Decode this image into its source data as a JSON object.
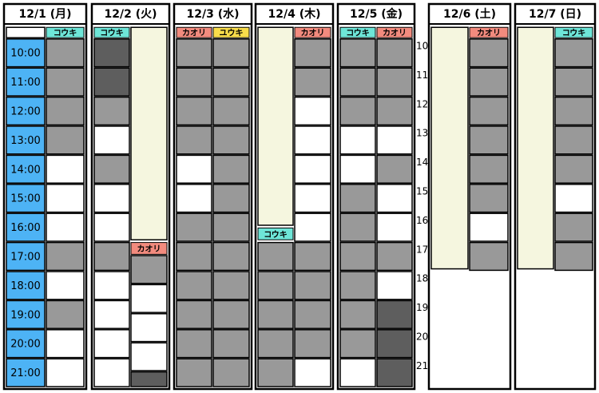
{
  "days": [
    {
      "header": "12/1 (月)",
      "columns": [
        {
          "blocks": [
            [
              9.6,
              10,
              "#ffffff"
            ],
            [
              10,
              11,
              "#4db3f5",
              "10:00"
            ],
            [
              11,
              12,
              "#4db3f5",
              "11:00"
            ],
            [
              12,
              13,
              "#4db3f5",
              "12:00"
            ],
            [
              13,
              14,
              "#4db3f5",
              "13:00"
            ],
            [
              14,
              15,
              "#4db3f5",
              "14:00"
            ],
            [
              15,
              16,
              "#4db3f5",
              "15:00"
            ],
            [
              16,
              17,
              "#4db3f5",
              "16:00"
            ],
            [
              17,
              18,
              "#4db3f5",
              "17:00"
            ],
            [
              18,
              19,
              "#4db3f5",
              "18:00"
            ],
            [
              19,
              20,
              "#4db3f5",
              "19:00"
            ],
            [
              20,
              21,
              "#4db3f5",
              "20:00"
            ],
            [
              21,
              22,
              "#4db3f5",
              "21:00"
            ]
          ]
        },
        {
          "blocks": [
            [
              9.6,
              10,
              "#6ee6d8",
              "コウキ"
            ],
            [
              10,
              11,
              "#999999"
            ],
            [
              11,
              12,
              "#999999"
            ],
            [
              12,
              13,
              "#999999"
            ],
            [
              13,
              14,
              "#999999"
            ],
            [
              14,
              15,
              "#ffffff"
            ],
            [
              15,
              16,
              "#ffffff"
            ],
            [
              16,
              17,
              "#ffffff"
            ],
            [
              17,
              18,
              "#999999"
            ],
            [
              18,
              19,
              "#ffffff"
            ],
            [
              19,
              20,
              "#999999"
            ],
            [
              20,
              21,
              "#ffffff"
            ],
            [
              21,
              22,
              "#ffffff"
            ]
          ]
        }
      ]
    },
    {
      "header": "12/2 (火)",
      "columns": [
        {
          "blocks": [
            [
              9.6,
              10,
              "#6ee6d8",
              "コウキ"
            ],
            [
              10,
              11,
              "#5e5e5e"
            ],
            [
              11,
              12,
              "#5e5e5e"
            ],
            [
              12,
              13,
              "#999999"
            ],
            [
              13,
              14,
              "#ffffff"
            ],
            [
              14,
              15,
              "#999999"
            ],
            [
              15,
              16,
              "#ffffff"
            ],
            [
              16,
              17,
              "#ffffff"
            ],
            [
              17,
              18,
              "#999999"
            ],
            [
              18,
              19,
              "#ffffff"
            ],
            [
              19,
              20,
              "#ffffff"
            ],
            [
              20,
              21,
              "#ffffff"
            ],
            [
              21,
              22,
              "#ffffff"
            ]
          ]
        },
        {
          "blocks": [
            [
              9.6,
              16.95,
              "#f5f6df"
            ],
            [
              17,
              17.45,
              "#f28b7e",
              "カオリ"
            ],
            [
              17.45,
              18.45,
              "#999999"
            ],
            [
              18.45,
              19.45,
              "#ffffff"
            ],
            [
              19.45,
              20.45,
              "#ffffff"
            ],
            [
              20.45,
              21.45,
              "#ffffff"
            ],
            [
              21.45,
              22,
              "#5e5e5e"
            ]
          ]
        }
      ]
    },
    {
      "header": "12/3 (水)",
      "columns": [
        {
          "blocks": [
            [
              9.6,
              10,
              "#f28b7e",
              "カオリ"
            ],
            [
              10,
              11,
              "#999999"
            ],
            [
              11,
              12,
              "#999999"
            ],
            [
              12,
              13,
              "#999999"
            ],
            [
              13,
              14,
              "#999999"
            ],
            [
              14,
              15,
              "#ffffff"
            ],
            [
              15,
              16,
              "#ffffff"
            ],
            [
              16,
              17,
              "#999999"
            ],
            [
              17,
              18,
              "#999999"
            ],
            [
              18,
              19,
              "#999999"
            ],
            [
              19,
              20,
              "#999999"
            ],
            [
              20,
              21,
              "#999999"
            ],
            [
              21,
              22,
              "#999999"
            ]
          ]
        },
        {
          "blocks": [
            [
              9.6,
              10,
              "#f9dd4a",
              "ユウキ"
            ],
            [
              10,
              11,
              "#999999"
            ],
            [
              11,
              12,
              "#999999"
            ],
            [
              12,
              13,
              "#999999"
            ],
            [
              13,
              14,
              "#999999"
            ],
            [
              14,
              15,
              "#999999"
            ],
            [
              15,
              16,
              "#999999"
            ],
            [
              16,
              17,
              "#999999"
            ],
            [
              17,
              18,
              "#999999"
            ],
            [
              18,
              19,
              "#999999"
            ],
            [
              19,
              20,
              "#999999"
            ],
            [
              20,
              21,
              "#999999"
            ],
            [
              21,
              22,
              "#999999"
            ]
          ]
        }
      ]
    },
    {
      "header": "12/4 (木)",
      "columns": [
        {
          "blocks": [
            [
              9.6,
              16.45,
              "#f5f6df"
            ],
            [
              16.5,
              16.95,
              "#6ee6d8",
              "コウキ"
            ],
            [
              17,
              18,
              "#999999"
            ],
            [
              18,
              19,
              "#999999"
            ],
            [
              19,
              20,
              "#999999"
            ],
            [
              20,
              21,
              "#999999"
            ],
            [
              21,
              22,
              "#999999"
            ]
          ]
        },
        {
          "blocks": [
            [
              9.6,
              10,
              "#f28b7e",
              "カオリ"
            ],
            [
              10,
              11,
              "#999999"
            ],
            [
              11,
              12,
              "#999999"
            ],
            [
              12,
              13,
              "#ffffff"
            ],
            [
              13,
              14,
              "#ffffff"
            ],
            [
              14,
              15,
              "#ffffff"
            ],
            [
              15,
              16,
              "#ffffff"
            ],
            [
              16,
              17,
              "#ffffff"
            ],
            [
              17,
              18,
              "#999999"
            ],
            [
              18,
              19,
              "#999999"
            ],
            [
              19,
              20,
              "#999999"
            ],
            [
              20,
              21,
              "#999999"
            ],
            [
              21,
              22,
              "#ffffff"
            ]
          ]
        }
      ]
    },
    {
      "header": "12/5 (金)",
      "columns": [
        {
          "blocks": [
            [
              9.6,
              10,
              "#6ee6d8",
              "コウキ"
            ],
            [
              10,
              11,
              "#999999"
            ],
            [
              11,
              12,
              "#999999"
            ],
            [
              12,
              13,
              "#999999"
            ],
            [
              13,
              14,
              "#ffffff"
            ],
            [
              14,
              15,
              "#ffffff"
            ],
            [
              15,
              16,
              "#999999"
            ],
            [
              16,
              17,
              "#999999"
            ],
            [
              17,
              18,
              "#999999"
            ],
            [
              18,
              19,
              "#999999"
            ],
            [
              19,
              20,
              "#999999"
            ],
            [
              20,
              21,
              "#999999"
            ],
            [
              21,
              22,
              "#ffffff"
            ]
          ]
        },
        {
          "blocks": [
            [
              9.6,
              10,
              "#f28b7e",
              "カオリ"
            ],
            [
              10,
              11,
              "#999999"
            ],
            [
              11,
              12,
              "#999999"
            ],
            [
              12,
              13,
              "#999999"
            ],
            [
              13,
              14,
              "#ffffff"
            ],
            [
              14,
              15,
              "#999999"
            ],
            [
              15,
              16,
              "#ffffff"
            ],
            [
              16,
              17,
              "#ffffff"
            ],
            [
              17,
              18,
              "#999999"
            ],
            [
              18,
              19,
              "#ffffff"
            ],
            [
              19,
              20,
              "#5e5e5e"
            ],
            [
              20,
              21,
              "#5e5e5e"
            ],
            [
              21,
              22,
              "#5e5e5e"
            ]
          ]
        }
      ]
    },
    {
      "header": "12/6 (土)",
      "columns": [
        {
          "blocks": [
            [
              9.6,
              17.95,
              "#f5f6df"
            ]
          ]
        },
        {
          "blocks": [
            [
              9.6,
              10,
              "#f28b7e",
              "カオリ"
            ],
            [
              10,
              11,
              "#999999"
            ],
            [
              11,
              12,
              "#999999"
            ],
            [
              12,
              13,
              "#999999"
            ],
            [
              13,
              14,
              "#999999"
            ],
            [
              14,
              15,
              "#999999"
            ],
            [
              15,
              16,
              "#999999"
            ],
            [
              16,
              17,
              "#ffffff"
            ],
            [
              17,
              18,
              "#999999"
            ]
          ]
        }
      ]
    },
    {
      "header": "12/7 (日)",
      "columns": [
        {
          "blocks": [
            [
              9.6,
              17.95,
              "#f5f6df"
            ]
          ]
        },
        {
          "blocks": [
            [
              9.6,
              10,
              "#6ee6d8",
              "コウキ"
            ],
            [
              10,
              11,
              "#999999"
            ],
            [
              11,
              12,
              "#999999"
            ],
            [
              12,
              13,
              "#999999"
            ],
            [
              13,
              14,
              "#999999"
            ],
            [
              14,
              15,
              "#999999"
            ],
            [
              15,
              16,
              "#ffffff"
            ],
            [
              16,
              17,
              "#999999"
            ],
            [
              17,
              18,
              "#999999"
            ]
          ]
        }
      ]
    }
  ],
  "hour_labels": [
    "10",
    "11",
    "12",
    "13",
    "14",
    "15",
    "16",
    "17",
    "18",
    "19",
    "20",
    "21"
  ]
}
